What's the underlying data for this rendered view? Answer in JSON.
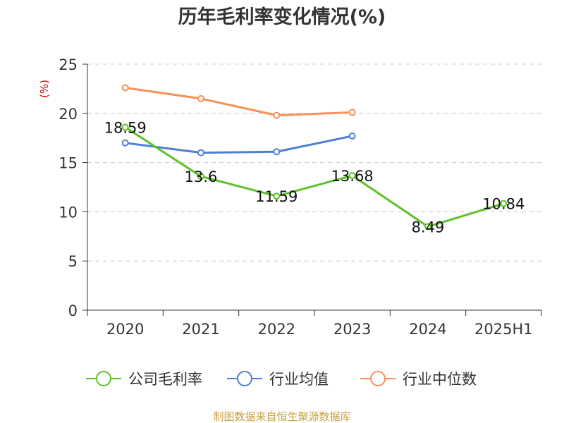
{
  "chart_data": {
    "type": "line",
    "title": "历年毛利率变化情况(%)",
    "ylabel": "(%)",
    "categories": [
      "2020",
      "2021",
      "2022",
      "2023",
      "2024",
      "2025H1"
    ],
    "ylim": [
      0,
      25
    ],
    "yticks": [
      "0",
      "5",
      "10",
      "15",
      "20",
      "25"
    ],
    "grid": true,
    "legend_position": "bottom",
    "series": [
      {
        "name": "公司毛利率",
        "color": "#5ec22b",
        "values": [
          18.59,
          13.6,
          11.59,
          13.68,
          8.49,
          10.84
        ],
        "labels": [
          "18.59",
          "13.6",
          "11.59",
          "13.68",
          "8.49",
          "10.84"
        ]
      },
      {
        "name": "行业均值",
        "color": "#4d7fd9",
        "values": [
          17.0,
          16.0,
          16.1,
          17.7,
          null,
          null
        ]
      },
      {
        "name": "行业中位数",
        "color": "#f7905a",
        "values": [
          22.6,
          21.5,
          19.8,
          20.1,
          null,
          null
        ]
      }
    ]
  },
  "source": "制图数据来自恒生聚源数据库"
}
